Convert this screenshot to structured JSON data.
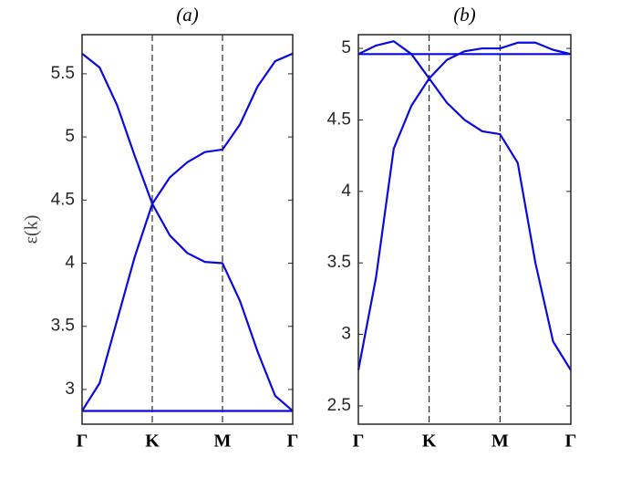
{
  "chart_data": [
    {
      "type": "line",
      "title": "(a)",
      "ylabel": "ε(k)",
      "x": [
        0,
        0.25,
        0.5,
        0.75,
        1,
        1.25,
        1.5,
        1.75,
        2,
        2.25,
        2.5,
        2.75,
        3
      ],
      "series": [
        {
          "color": "#0a0ae0",
          "values": [
            2.83,
            2.83,
            2.83,
            2.83,
            2.83,
            2.83,
            2.83,
            2.83,
            2.83,
            2.83,
            2.83,
            2.83,
            2.83
          ]
        },
        {
          "color": "#0a0ae0",
          "values": [
            2.83,
            3.05,
            3.55,
            4.05,
            4.47,
            4.68,
            4.8,
            4.88,
            4.9,
            5.1,
            5.4,
            5.6,
            5.66
          ]
        },
        {
          "color": "#0a0ae0",
          "values": [
            5.66,
            5.55,
            5.25,
            4.85,
            4.47,
            4.22,
            4.08,
            4.01,
            4.0,
            3.7,
            3.3,
            2.95,
            2.83
          ]
        }
      ],
      "xlim": [
        0,
        3
      ],
      "xticks": [
        {
          "value": 0,
          "label": "Γ"
        },
        {
          "value": 1,
          "label": "K"
        },
        {
          "value": 2,
          "label": "M"
        },
        {
          "value": 3,
          "label": "Γ"
        }
      ],
      "ylim": [
        2.725,
        5.81
      ],
      "yticks": [
        3,
        3.5,
        4,
        4.5,
        5,
        5.5
      ],
      "xgrid": "dashed"
    },
    {
      "type": "line",
      "title": "(b)",
      "x": [
        0,
        0.25,
        0.5,
        0.75,
        1,
        1.25,
        1.5,
        1.75,
        2,
        2.25,
        2.5,
        2.75,
        3
      ],
      "series": [
        {
          "color": "#0a0ae0",
          "values": [
            4.96,
            4.96,
            4.96,
            4.96,
            4.96,
            4.96,
            4.96,
            4.96,
            4.96,
            4.96,
            4.96,
            4.96,
            4.96
          ]
        },
        {
          "color": "#0a0ae0",
          "values": [
            2.75,
            3.4,
            4.3,
            4.6,
            4.79,
            4.92,
            4.98,
            5.0,
            5.0,
            5.04,
            5.04,
            4.99,
            4.96
          ]
        },
        {
          "color": "#0a0ae0",
          "values": [
            4.96,
            5.02,
            5.05,
            4.96,
            4.79,
            4.62,
            4.5,
            4.42,
            4.4,
            4.2,
            3.5,
            2.95,
            2.75
          ]
        }
      ],
      "xlim": [
        0,
        3
      ],
      "xticks": [
        {
          "value": 0,
          "label": "Γ"
        },
        {
          "value": 1,
          "label": "K"
        },
        {
          "value": 2,
          "label": "M"
        },
        {
          "value": 3,
          "label": "Γ"
        }
      ],
      "ylim": [
        2.372,
        5.096
      ],
      "yticks": [
        2.5,
        3,
        3.5,
        4,
        4.5,
        5
      ],
      "xgrid": "dashed"
    }
  ]
}
